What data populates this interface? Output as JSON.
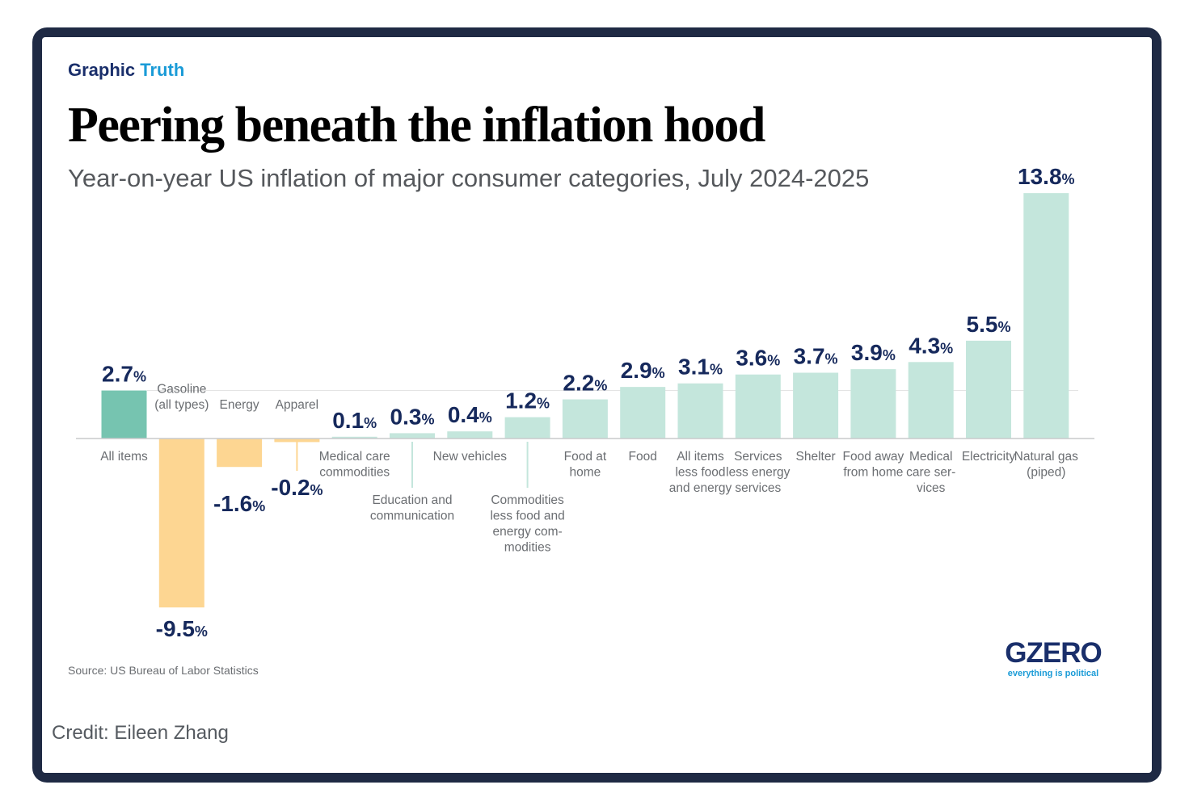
{
  "header": {
    "kicker_word1": "Graphic",
    "kicker_word2": "Truth",
    "title": "Peering beneath the inflation hood",
    "subtitle": "Year-on-year US inflation of major consumer categories, July 2024-2025"
  },
  "footer": {
    "source": "Source: US Bureau of Labor Statistics",
    "logo_main": "GZERO",
    "logo_tagline": "everything is political",
    "credit": "Credit: Eileen Zhang"
  },
  "colors": {
    "highlight": "#76c4b0",
    "positive": "#c4e6dc",
    "negative": "#fdd692",
    "value_text": "#16295c",
    "label_text": "#6b6e72"
  },
  "chart_data": {
    "type": "bar",
    "title": "Peering beneath the inflation hood",
    "subtitle": "Year-on-year US inflation of major consumer categories, July 2024-2025",
    "unit": "%",
    "ylim": [
      -9.5,
      13.8
    ],
    "reference_line": 2.7,
    "categories": [
      {
        "label": "All items",
        "lines": [
          "All items"
        ],
        "value": 2.7,
        "display": "2.7",
        "highlight": true
      },
      {
        "label": "Gasoline (all types)",
        "lines": [
          "Gasoline",
          "(all types)"
        ],
        "value": -9.5,
        "display": "-9.5"
      },
      {
        "label": "Energy",
        "lines": [
          "Energy"
        ],
        "value": -1.6,
        "display": "-1.6"
      },
      {
        "label": "Apparel",
        "lines": [
          "Apparel"
        ],
        "value": -0.2,
        "display": "-0.2"
      },
      {
        "label": "Medical care commodities",
        "lines": [
          "Medical care",
          "commodities"
        ],
        "value": 0.1,
        "display": "0.1"
      },
      {
        "label": "Education and communication",
        "lines": [
          "Education and",
          "communication"
        ],
        "value": 0.3,
        "display": "0.3"
      },
      {
        "label": "New vehicles",
        "lines": [
          "New vehicles"
        ],
        "value": 0.4,
        "display": "0.4"
      },
      {
        "label": "Commodities less food and energy commodities",
        "lines": [
          "Commodities",
          "less food and",
          "energy com-",
          "modities"
        ],
        "value": 1.2,
        "display": "1.2"
      },
      {
        "label": "Food at home",
        "lines": [
          "Food at",
          "home"
        ],
        "value": 2.2,
        "display": "2.2"
      },
      {
        "label": "Food",
        "lines": [
          "Food"
        ],
        "value": 2.9,
        "display": "2.9"
      },
      {
        "label": "All items less food and energy",
        "lines": [
          "All items",
          "less food",
          "and energy"
        ],
        "value": 3.1,
        "display": "3.1"
      },
      {
        "label": "Services less energy services",
        "lines": [
          "Services",
          "less energy",
          "services"
        ],
        "value": 3.6,
        "display": "3.6"
      },
      {
        "label": "Shelter",
        "lines": [
          "Shelter"
        ],
        "value": 3.7,
        "display": "3.7"
      },
      {
        "label": "Food away from home",
        "lines": [
          "Food away",
          "from home"
        ],
        "value": 3.9,
        "display": "3.9"
      },
      {
        "label": "Medical care services",
        "lines": [
          "Medical",
          "care ser-",
          "vices"
        ],
        "value": 4.3,
        "display": "4.3"
      },
      {
        "label": "Electricity",
        "lines": [
          "Electricity"
        ],
        "value": 5.5,
        "display": "5.5"
      },
      {
        "label": "Natural gas (piped)",
        "lines": [
          "Natural gas",
          "(piped)"
        ],
        "value": 13.8,
        "display": "13.8"
      }
    ]
  }
}
